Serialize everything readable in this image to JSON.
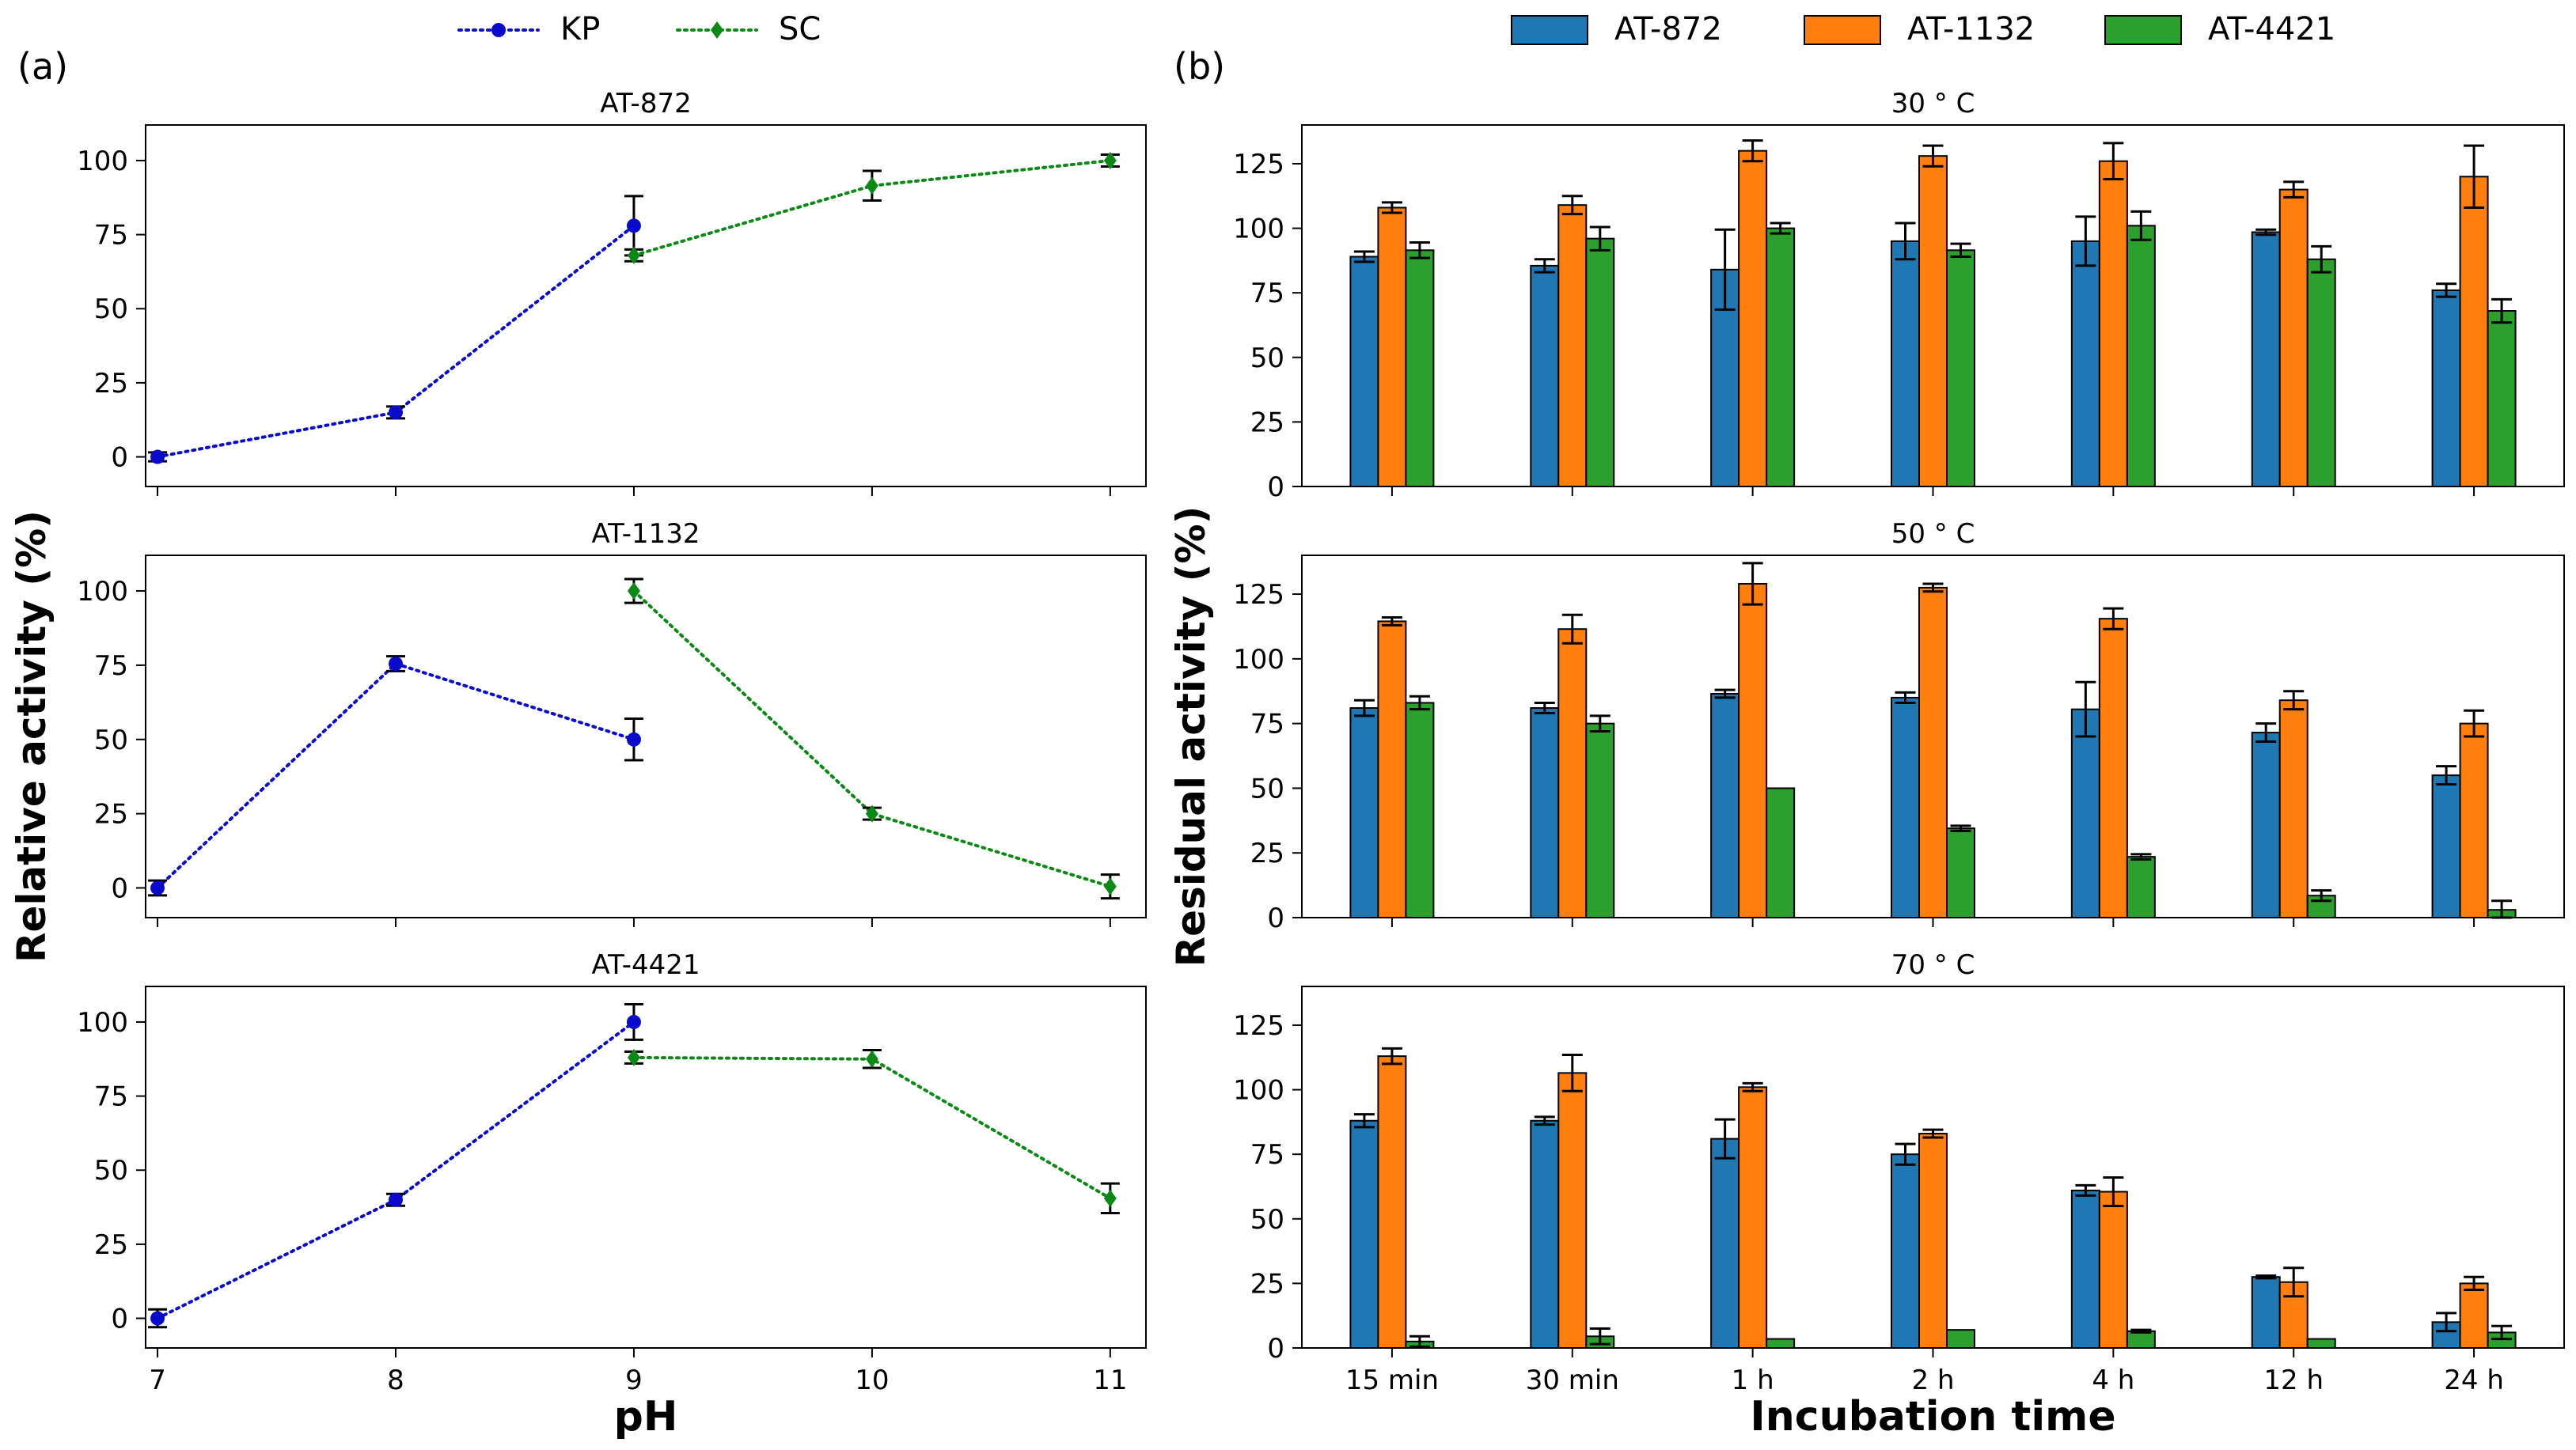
{
  "panel_labels": {
    "a": "(a)",
    "b": "(b)"
  },
  "colors": {
    "kp": "#0a0acd",
    "sc": "#0a8a14",
    "at872": "#1f77b4",
    "at1132": "#ff7f0e",
    "at4421": "#2ca02c"
  },
  "chart_data": [
    {
      "id": "a",
      "type": "line",
      "legend": [
        "KP",
        "SC"
      ],
      "legend_position": "top-center",
      "xlabel": "pH",
      "ylabel": "Relative activity (%)",
      "xticks": [
        7,
        8,
        9,
        10,
        11
      ],
      "yticks": [
        0,
        25,
        50,
        75,
        100
      ],
      "ylim": [
        -10,
        112
      ],
      "xlim": [
        6.95,
        11.15
      ],
      "subplots": [
        {
          "title": "AT-872",
          "series": [
            {
              "name": "KP",
              "x": [
                7,
                8,
                9
              ],
              "y": [
                0,
                15,
                78
              ],
              "err": [
                1.5,
                2,
                10
              ]
            },
            {
              "name": "SC",
              "x": [
                9,
                10,
                11
              ],
              "y": [
                68,
                91.5,
                100
              ],
              "err": [
                2,
                5,
                2
              ]
            }
          ]
        },
        {
          "title": "AT-1132",
          "series": [
            {
              "name": "KP",
              "x": [
                7,
                8,
                9
              ],
              "y": [
                0,
                75.5,
                50
              ],
              "err": [
                2.5,
                2.5,
                7
              ]
            },
            {
              "name": "SC",
              "x": [
                9,
                10,
                11
              ],
              "y": [
                100,
                25,
                0.5
              ],
              "err": [
                4,
                2,
                4
              ]
            }
          ]
        },
        {
          "title": "AT-4421",
          "series": [
            {
              "name": "KP",
              "x": [
                7,
                8,
                9
              ],
              "y": [
                0,
                40,
                100
              ],
              "err": [
                3,
                2,
                6
              ]
            },
            {
              "name": "SC",
              "x": [
                9,
                10,
                11
              ],
              "y": [
                88,
                87.5,
                40.5
              ],
              "err": [
                2,
                3,
                5
              ]
            }
          ]
        }
      ]
    },
    {
      "id": "b",
      "type": "bar",
      "legend": [
        "AT-872",
        "AT-1132",
        "AT-4421"
      ],
      "legend_position": "top-center",
      "xlabel": "Incubation time",
      "ylabel": "Residual activity (%)",
      "categories": [
        "15 min",
        "30 min",
        "1 h",
        "2 h",
        "4 h",
        "12 h",
        "24 h"
      ],
      "yticks": [
        0,
        25,
        50,
        75,
        100,
        125
      ],
      "ylim": [
        0,
        140
      ],
      "subplots": [
        {
          "title": "30 ° C",
          "series": [
            {
              "name": "AT-872",
              "values": [
                89,
                85.5,
                84,
                95,
                95,
                98.5,
                76
              ],
              "err": [
                2,
                2.5,
                15.5,
                7,
                9.5,
                1,
                2.5
              ]
            },
            {
              "name": "AT-1132",
              "values": [
                108,
                109,
                130,
                128,
                126,
                115,
                120
              ],
              "err": [
                2,
                3.5,
                4,
                4,
                7,
                3,
                12
              ]
            },
            {
              "name": "AT-4421",
              "values": [
                91.5,
                96,
                100,
                91.5,
                101,
                88,
                68
              ],
              "err": [
                3,
                4.5,
                2,
                2.5,
                5.5,
                5,
                4.5
              ]
            }
          ]
        },
        {
          "title": "50 ° C",
          "series": [
            {
              "name": "AT-872",
              "values": [
                81,
                81,
                86.5,
                85,
                80.5,
                71.5,
                55
              ],
              "err": [
                3,
                2,
                1.5,
                2,
                10.5,
                3.5,
                3.5
              ]
            },
            {
              "name": "AT-1132",
              "values": [
                114.5,
                111.5,
                129,
                127.5,
                115.5,
                84,
                75
              ],
              "err": [
                1.5,
                5.5,
                8,
                1.5,
                4,
                3.5,
                5
              ]
            },
            {
              "name": "AT-4421",
              "values": [
                83,
                75,
                50,
                34.5,
                23.5,
                8.5,
                3
              ],
              "err": [
                2.5,
                3,
                0,
                1,
                1,
                2,
                3.5
              ]
            }
          ]
        },
        {
          "title": "70 ° C",
          "series": [
            {
              "name": "AT-872",
              "values": [
                88,
                88,
                81,
                75,
                61,
                27.5,
                10
              ],
              "err": [
                2.5,
                1.5,
                7.5,
                4,
                2,
                0.5,
                3.5
              ]
            },
            {
              "name": "AT-1132",
              "values": [
                113,
                106.5,
                101,
                83,
                60.5,
                25.5,
                25
              ],
              "err": [
                3,
                7,
                1.5,
                1.5,
                5.5,
                5.5,
                2.5
              ]
            },
            {
              "name": "AT-4421",
              "values": [
                2.5,
                4.5,
                3.5,
                7,
                6.5,
                3.5,
                6
              ],
              "err": [
                2,
                3,
                0,
                0,
                0.5,
                0,
                2.5
              ]
            }
          ]
        }
      ]
    }
  ]
}
